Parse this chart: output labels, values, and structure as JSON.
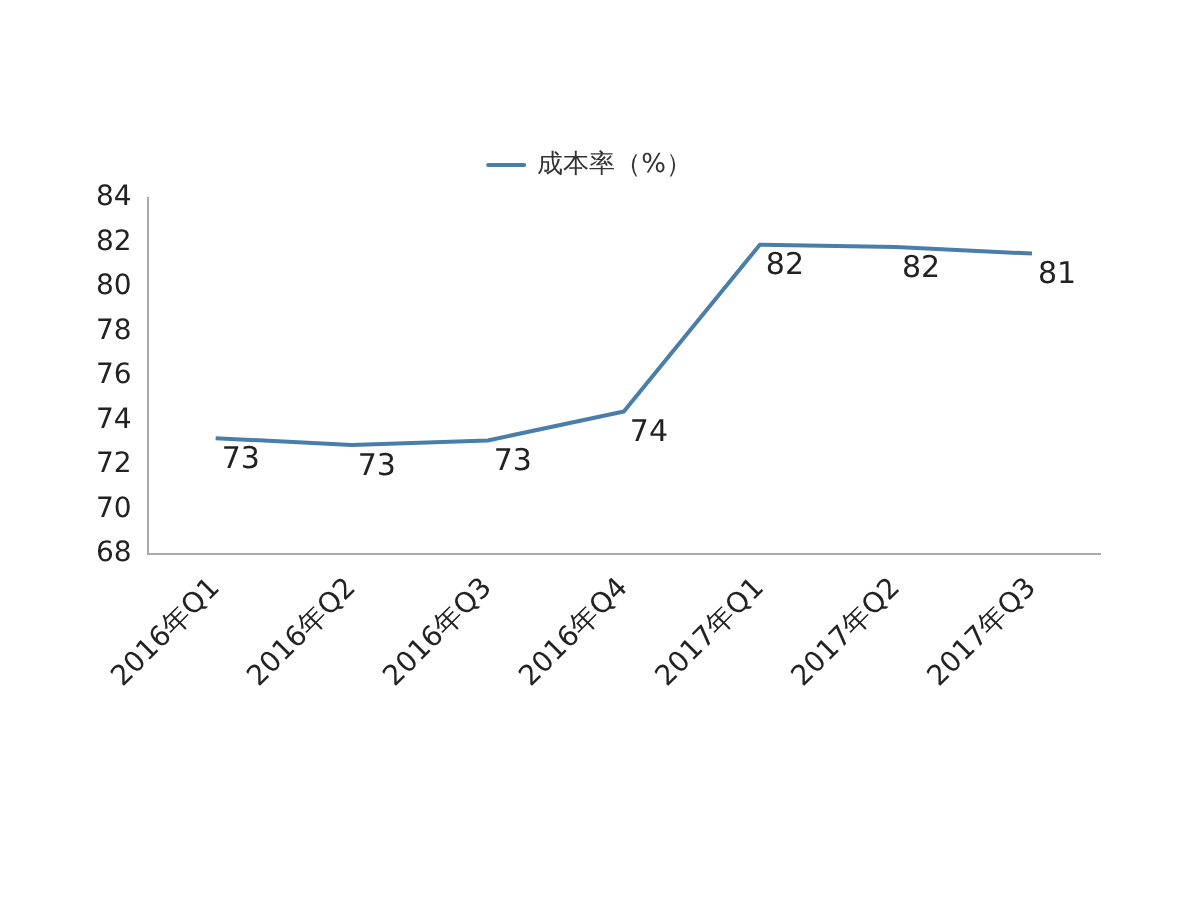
{
  "chart_data": {
    "type": "line",
    "categories": [
      "2016年Q1",
      "2016年Q2",
      "2016年Q3",
      "2016年Q4",
      "2017年Q1",
      "2017年Q2",
      "2017年Q3"
    ],
    "series": [
      {
        "name": "成本率（%）",
        "color": "#4a7eaa",
        "values": [
          73.2,
          72.9,
          73.1,
          74.4,
          81.9,
          81.8,
          81.5
        ],
        "value_labels": [
          "73",
          "73",
          "73",
          "74",
          "82",
          "82",
          "81"
        ]
      }
    ],
    "ylim": [
      68,
      84
    ],
    "yticks": [
      68,
      70,
      72,
      74,
      76,
      78,
      80,
      82,
      84
    ],
    "grid": false,
    "legend": "top",
    "marker": "none",
    "line_style": "solid"
  }
}
